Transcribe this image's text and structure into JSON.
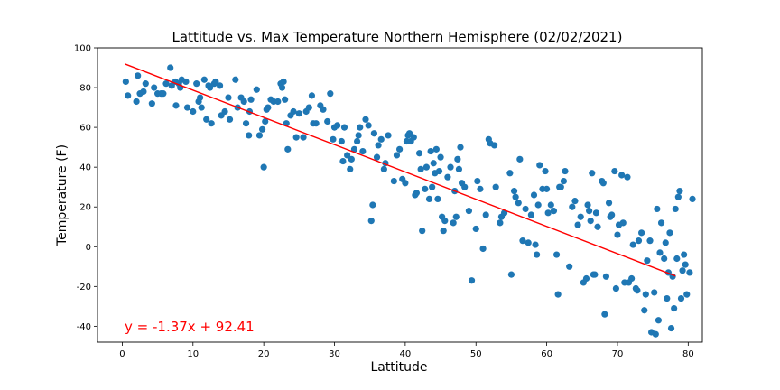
{
  "chart_data": {
    "type": "scatter",
    "title": "Lattitude  vs. Max Temperature Northern Hemisphere (02/02/2021)",
    "xlabel": "Lattitude",
    "ylabel": "Temperature (F)",
    "xlim": [
      -3.5,
      82
    ],
    "ylim": [
      -48,
      100
    ],
    "xticks": [
      0,
      10,
      20,
      30,
      40,
      50,
      60,
      70,
      80
    ],
    "yticks": [
      -40,
      -20,
      0,
      20,
      40,
      60,
      80,
      100
    ],
    "grid": false,
    "point_color": "#1f77b4",
    "line_color": "#ff0000",
    "equation_color": "#ff0000",
    "regression": {
      "slope": -1.37,
      "intercept": 92.41,
      "x_range": [
        0.4,
        78.2
      ],
      "equation": "y = -1.37x + 92.41"
    },
    "series": [
      {
        "points": [
          [
            0.5,
            83
          ],
          [
            0.8,
            76
          ],
          [
            2,
            73
          ],
          [
            2.2,
            86
          ],
          [
            2.5,
            77
          ],
          [
            3,
            78
          ],
          [
            3.3,
            82
          ],
          [
            4.2,
            72
          ],
          [
            4.5,
            80
          ],
          [
            5,
            77
          ],
          [
            5.5,
            77
          ],
          [
            5.8,
            77
          ],
          [
            6.2,
            82
          ],
          [
            6.8,
            90
          ],
          [
            7,
            81
          ],
          [
            7.5,
            83
          ],
          [
            7.6,
            71
          ],
          [
            8,
            82
          ],
          [
            8.2,
            80
          ],
          [
            8.4,
            84
          ],
          [
            9,
            83
          ],
          [
            9.2,
            70
          ],
          [
            10,
            68
          ],
          [
            10.5,
            82
          ],
          [
            10.8,
            73
          ],
          [
            11,
            75
          ],
          [
            11.2,
            70
          ],
          [
            11.6,
            84
          ],
          [
            11.9,
            64
          ],
          [
            12.2,
            81
          ],
          [
            12.4,
            80
          ],
          [
            12.6,
            62
          ],
          [
            13,
            82
          ],
          [
            13.2,
            83
          ],
          [
            13.8,
            81
          ],
          [
            14,
            66
          ],
          [
            14.5,
            68
          ],
          [
            15,
            75
          ],
          [
            15.2,
            64
          ],
          [
            16,
            84
          ],
          [
            16.3,
            70
          ],
          [
            16.8,
            75
          ],
          [
            17.2,
            73
          ],
          [
            17.5,
            62
          ],
          [
            17.9,
            56
          ],
          [
            18,
            68
          ],
          [
            18.2,
            74
          ],
          [
            19,
            79
          ],
          [
            19.4,
            56
          ],
          [
            19.8,
            59
          ],
          [
            20,
            40
          ],
          [
            20.2,
            63
          ],
          [
            20.4,
            69
          ],
          [
            20.6,
            70
          ],
          [
            21,
            74
          ],
          [
            21.4,
            73
          ],
          [
            22,
            73
          ],
          [
            22.4,
            82
          ],
          [
            22.6,
            80
          ],
          [
            22.8,
            83
          ],
          [
            23,
            74
          ],
          [
            23.2,
            62
          ],
          [
            23.4,
            49
          ],
          [
            23.8,
            66
          ],
          [
            24.2,
            68
          ],
          [
            24.6,
            55
          ],
          [
            25,
            67
          ],
          [
            25.6,
            55
          ],
          [
            26,
            68
          ],
          [
            26.4,
            70
          ],
          [
            26.8,
            76
          ],
          [
            27,
            62
          ],
          [
            27.4,
            62
          ],
          [
            28,
            71
          ],
          [
            28.4,
            69
          ],
          [
            29,
            63
          ],
          [
            29.4,
            77
          ],
          [
            29.8,
            54
          ],
          [
            30,
            60
          ],
          [
            30.4,
            61
          ],
          [
            31,
            53
          ],
          [
            31.2,
            43
          ],
          [
            31.4,
            60
          ],
          [
            31.8,
            46
          ],
          [
            32.2,
            39
          ],
          [
            32.4,
            44
          ],
          [
            32.8,
            49
          ],
          [
            33.2,
            53
          ],
          [
            33.4,
            56
          ],
          [
            33.6,
            60
          ],
          [
            34,
            48
          ],
          [
            34.4,
            64
          ],
          [
            34.8,
            61
          ],
          [
            35.2,
            13
          ],
          [
            35.4,
            21
          ],
          [
            35.6,
            57
          ],
          [
            36,
            45
          ],
          [
            36.2,
            51
          ],
          [
            36.6,
            54
          ],
          [
            37,
            39
          ],
          [
            37.2,
            42
          ],
          [
            37.6,
            56
          ],
          [
            38.4,
            33
          ],
          [
            38.8,
            46
          ],
          [
            39.2,
            49
          ],
          [
            39.6,
            34
          ],
          [
            40,
            32
          ],
          [
            40.2,
            53
          ],
          [
            40.4,
            56
          ],
          [
            40.6,
            57
          ],
          [
            40.8,
            53
          ],
          [
            41.2,
            55
          ],
          [
            41.4,
            26
          ],
          [
            41.6,
            27
          ],
          [
            42,
            47
          ],
          [
            42.2,
            39
          ],
          [
            42.4,
            8
          ],
          [
            42.8,
            29
          ],
          [
            43,
            40
          ],
          [
            43.4,
            24
          ],
          [
            43.6,
            48
          ],
          [
            43.8,
            30
          ],
          [
            44,
            42
          ],
          [
            44.2,
            37
          ],
          [
            44.4,
            49
          ],
          [
            44.6,
            24
          ],
          [
            44.8,
            38
          ],
          [
            45,
            45
          ],
          [
            45.2,
            15
          ],
          [
            45.4,
            8
          ],
          [
            45.6,
            13
          ],
          [
            46,
            35
          ],
          [
            46.4,
            40
          ],
          [
            46.8,
            12
          ],
          [
            47,
            28
          ],
          [
            47.2,
            15
          ],
          [
            47.4,
            44
          ],
          [
            47.6,
            39
          ],
          [
            47.8,
            50
          ],
          [
            48,
            32
          ],
          [
            48.4,
            30
          ],
          [
            49,
            18
          ],
          [
            49.4,
            -17
          ],
          [
            50,
            9
          ],
          [
            50.2,
            33
          ],
          [
            50.6,
            29
          ],
          [
            51,
            -1
          ],
          [
            51.4,
            16
          ],
          [
            51.8,
            54
          ],
          [
            52,
            52
          ],
          [
            52.6,
            51
          ],
          [
            52.8,
            30
          ],
          [
            53.4,
            12
          ],
          [
            53.6,
            15
          ],
          [
            54,
            17
          ],
          [
            54.8,
            37
          ],
          [
            55,
            -14
          ],
          [
            55.4,
            28
          ],
          [
            55.6,
            25
          ],
          [
            56,
            22
          ],
          [
            56.2,
            44
          ],
          [
            56.6,
            3
          ],
          [
            57,
            19
          ],
          [
            57.4,
            2
          ],
          [
            57.8,
            16
          ],
          [
            58.2,
            26
          ],
          [
            58.4,
            1
          ],
          [
            58.6,
            -4
          ],
          [
            58.8,
            21
          ],
          [
            59,
            41
          ],
          [
            59.4,
            29
          ],
          [
            59.8,
            38
          ],
          [
            60,
            29
          ],
          [
            60.2,
            17
          ],
          [
            60.6,
            21
          ],
          [
            61,
            18
          ],
          [
            61.4,
            -4
          ],
          [
            61.6,
            -24
          ],
          [
            61.8,
            30
          ],
          [
            62,
            30
          ],
          [
            62.4,
            33
          ],
          [
            62.6,
            38
          ],
          [
            63.2,
            -10
          ],
          [
            63.6,
            20
          ],
          [
            64,
            23
          ],
          [
            64.4,
            11
          ],
          [
            64.8,
            15
          ],
          [
            65.2,
            -18
          ],
          [
            65.6,
            -16
          ],
          [
            65.8,
            21
          ],
          [
            66,
            18
          ],
          [
            66.2,
            13
          ],
          [
            66.4,
            37
          ],
          [
            66.6,
            -14
          ],
          [
            66.8,
            -14
          ],
          [
            67,
            17
          ],
          [
            67.2,
            10
          ],
          [
            67.8,
            33
          ],
          [
            68,
            32
          ],
          [
            68.2,
            -34
          ],
          [
            68.4,
            -15
          ],
          [
            68.8,
            22
          ],
          [
            69,
            15
          ],
          [
            69.2,
            16
          ],
          [
            69.6,
            38
          ],
          [
            69.8,
            -21
          ],
          [
            70,
            6
          ],
          [
            70.2,
            11
          ],
          [
            70.6,
            36
          ],
          [
            70.8,
            12
          ],
          [
            71,
            -18
          ],
          [
            71.4,
            35
          ],
          [
            71.6,
            -18
          ],
          [
            72,
            -16
          ],
          [
            72.2,
            1
          ],
          [
            72.6,
            -21
          ],
          [
            72.8,
            -22
          ],
          [
            73,
            3
          ],
          [
            73.4,
            7
          ],
          [
            73.8,
            -32
          ],
          [
            74,
            -24
          ],
          [
            74.2,
            -7
          ],
          [
            74.6,
            3
          ],
          [
            74.8,
            -43
          ],
          [
            75.2,
            -23
          ],
          [
            75.4,
            -44
          ],
          [
            75.6,
            19
          ],
          [
            75.8,
            -37
          ],
          [
            76,
            -3
          ],
          [
            76.2,
            12
          ],
          [
            76.6,
            -6
          ],
          [
            76.8,
            2
          ],
          [
            77,
            -26
          ],
          [
            77.2,
            -13
          ],
          [
            77.4,
            7
          ],
          [
            77.6,
            -41
          ],
          [
            77.8,
            -15
          ],
          [
            78,
            -31
          ],
          [
            78.2,
            19
          ],
          [
            78.4,
            -6
          ],
          [
            78.6,
            25
          ],
          [
            78.8,
            28
          ],
          [
            79,
            -26
          ],
          [
            79.2,
            -12
          ],
          [
            79.4,
            -4
          ],
          [
            79.6,
            -9
          ],
          [
            79.8,
            -24
          ],
          [
            80.2,
            -13
          ],
          [
            80.6,
            24
          ]
        ]
      }
    ]
  }
}
